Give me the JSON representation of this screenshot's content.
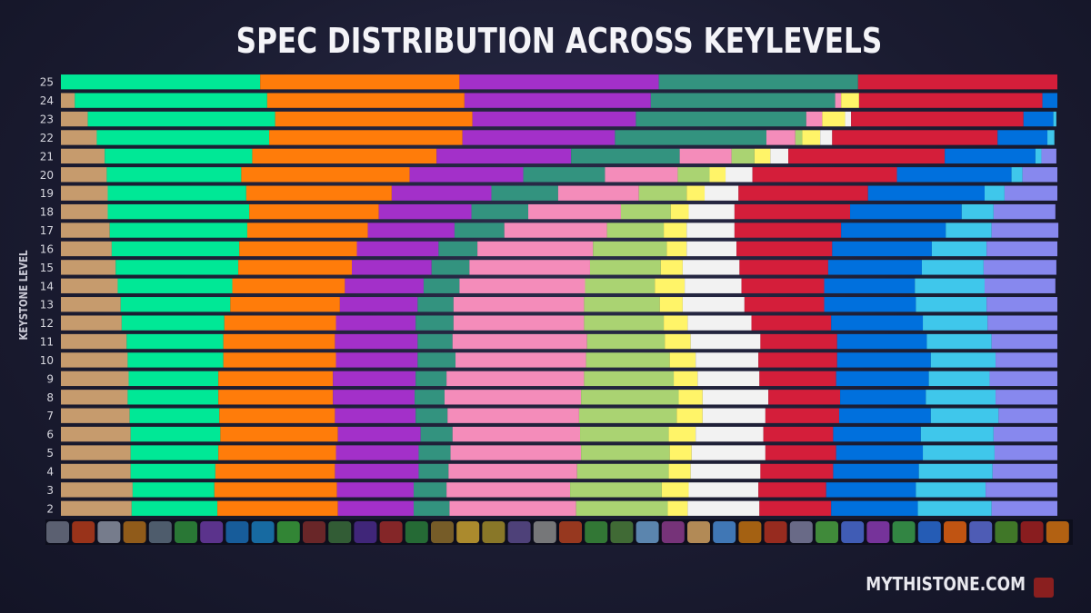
{
  "chart_data": {
    "type": "bar",
    "orientation": "horizontal",
    "stacked": true,
    "title": "SPEC DISTRIBUTION ACROSS KEYLEVELS",
    "y_label": "KEYSTONE LEVEL",
    "watermark": "MYTHISTONE.COM",
    "xlim": [
      0,
      100
    ],
    "categories": [
      "25",
      "24",
      "23",
      "22",
      "21",
      "20",
      "19",
      "18",
      "17",
      "16",
      "15",
      "14",
      "13",
      "12",
      "11",
      "10",
      "9",
      "8",
      "7",
      "6",
      "5",
      "4",
      "3",
      "2"
    ],
    "series": [
      {
        "color": "#c69b6d",
        "values": [
          0,
          1.4,
          2.7,
          3.6,
          4.4,
          4.6,
          4.7,
          4.7,
          4.9,
          5.1,
          5.5,
          5.7,
          6.0,
          6.1,
          6.6,
          6.7,
          6.8,
          6.7,
          6.9,
          7.0,
          7.0,
          7.0,
          7.2,
          7.1
        ]
      },
      {
        "color": "#00e896",
        "values": [
          20,
          19.3,
          18.8,
          17.3,
          14.8,
          13.5,
          13.9,
          14.2,
          13.8,
          12.8,
          12.3,
          11.5,
          11.0,
          10.3,
          9.7,
          9.6,
          9.0,
          9.1,
          9.0,
          9.0,
          8.8,
          8.5,
          8.2,
          8.6
        ]
      },
      {
        "color": "#ff7c0a",
        "values": [
          20,
          19.8,
          19.8,
          19.4,
          18.5,
          16.9,
          14.6,
          13.0,
          12.1,
          11.8,
          11.4,
          11.3,
          11.0,
          11.2,
          11.2,
          11.3,
          11.5,
          11.5,
          11.6,
          11.8,
          11.8,
          12.0,
          12.3,
          12.1
        ]
      },
      {
        "color": "#a330c9",
        "values": [
          20,
          18.7,
          16.4,
          15.3,
          13.5,
          11.4,
          10.0,
          9.3,
          8.7,
          8.2,
          8.0,
          7.9,
          7.8,
          8.0,
          8.3,
          8.2,
          8.3,
          8.2,
          8.1,
          8.3,
          8.3,
          8.4,
          7.7,
          7.6
        ]
      },
      {
        "color": "#33937f",
        "values": [
          20,
          18.5,
          17.1,
          15.2,
          10.9,
          8.2,
          6.7,
          5.7,
          5.0,
          3.9,
          3.8,
          3.6,
          3.6,
          3.8,
          3.5,
          3.8,
          3.1,
          3.0,
          3.2,
          3.2,
          3.2,
          3.0,
          3.3,
          3.6
        ]
      },
      {
        "color": "#f48cba",
        "values": [
          0,
          0.6,
          1.6,
          2.9,
          5.2,
          7.3,
          8.1,
          9.3,
          10.3,
          11.6,
          12.1,
          12.6,
          13.1,
          13.1,
          13.5,
          13.1,
          13.8,
          13.7,
          13.2,
          12.8,
          13.1,
          12.9,
          12.4,
          12.7
        ]
      },
      {
        "color": "#aad372",
        "values": [
          0,
          0,
          0,
          0.7,
          2.3,
          3.2,
          4.8,
          5.0,
          5.7,
          7.4,
          7.1,
          7.0,
          7.6,
          8.0,
          7.8,
          8.4,
          9.0,
          9.8,
          9.8,
          8.9,
          8.9,
          9.2,
          9.2,
          9.2
        ]
      },
      {
        "color": "#fff468",
        "values": [
          0,
          1.8,
          2.3,
          1.8,
          1.6,
          1.6,
          1.8,
          1.8,
          2.3,
          2.0,
          2.2,
          3.0,
          2.3,
          2.4,
          2.6,
          2.6,
          2.4,
          2.4,
          2.6,
          2.7,
          2.2,
          2.2,
          2.7,
          2.0
        ]
      },
      {
        "color": "#f2f2f2",
        "values": [
          0,
          0,
          0.6,
          1.2,
          1.8,
          2.7,
          3.4,
          4.6,
          4.8,
          5.0,
          5.7,
          5.7,
          6.2,
          6.4,
          7.0,
          6.3,
          6.2,
          6.6,
          6.3,
          6.8,
          7.4,
          7.0,
          7.0,
          7.2
        ]
      },
      {
        "color": "#d41e3a",
        "values": [
          20,
          18.4,
          17.3,
          16.6,
          15.7,
          14.5,
          13.0,
          11.6,
          10.7,
          9.6,
          8.9,
          8.3,
          8.0,
          8.0,
          7.7,
          7.9,
          7.7,
          7.2,
          7.4,
          7.0,
          7.1,
          7.3,
          6.8,
          7.2
        ]
      },
      {
        "color": "#0070dd",
        "values": [
          0,
          1.5,
          3.0,
          5.0,
          9.1,
          11.5,
          11.7,
          11.2,
          10.5,
          10.0,
          9.4,
          9.1,
          9.2,
          9.2,
          9.0,
          9.4,
          9.3,
          8.6,
          9.2,
          8.8,
          8.7,
          8.6,
          9.0,
          8.7
        ]
      },
      {
        "color": "#3fc7eb",
        "values": [
          0,
          0,
          0.3,
          0.7,
          0.6,
          1.1,
          2.0,
          3.2,
          4.6,
          5.5,
          6.2,
          7.0,
          7.1,
          6.5,
          6.5,
          6.5,
          6.1,
          7.0,
          6.8,
          7.3,
          7.2,
          7.4,
          7.0,
          7.4
        ]
      },
      {
        "color": "#8788ee",
        "values": [
          0,
          0,
          0,
          0,
          1.5,
          3.5,
          5.3,
          6.2,
          6.7,
          7.1,
          7.3,
          7.1,
          7.1,
          7.0,
          6.6,
          6.2,
          6.8,
          6.2,
          5.9,
          6.4,
          6.3,
          6.5,
          7.2,
          6.6
        ]
      }
    ]
  }
}
